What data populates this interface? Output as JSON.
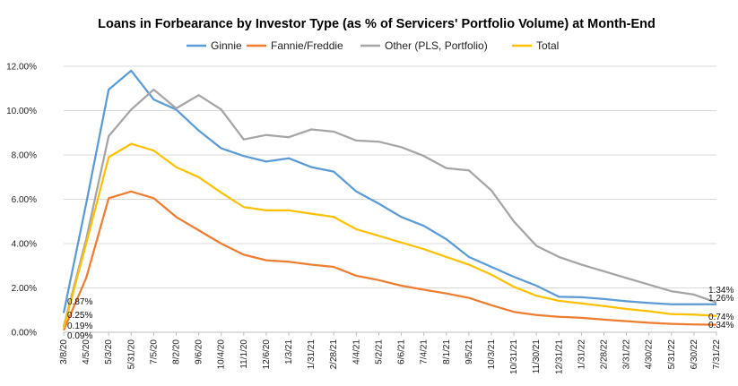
{
  "chart_data": {
    "type": "line",
    "title": "Loans in Forbearance by Investor Type (as % of Servicers' Portfolio Volume) at Month-End",
    "xlabel": "",
    "ylabel": "",
    "ylim": [
      0,
      12
    ],
    "y_ticks": [
      "0.00%",
      "2.00%",
      "4.00%",
      "6.00%",
      "8.00%",
      "10.00%",
      "12.00%"
    ],
    "grid": "horizontal",
    "legend_position": "top",
    "x": [
      "3/8/20",
      "4/5/20",
      "5/3/20",
      "5/31/20",
      "7/5/20",
      "8/2/20",
      "9/6/20",
      "10/4/20",
      "11/1/20",
      "12/6/20",
      "1/3/21",
      "1/31/21",
      "2/28/21",
      "4/4/21",
      "5/2/21",
      "6/6/21",
      "7/4/21",
      "8/1/21",
      "9/5/21",
      "10/3/21",
      "10/31/21",
      "11/30/21",
      "12/31/21",
      "1/31/22",
      "2/28/22",
      "3/31/22",
      "4/30/22",
      "5/31/22",
      "6/30/22",
      "7/31/22"
    ],
    "series": [
      {
        "name": "Ginnie",
        "color": "#5b9bd5",
        "values": [
          0.87,
          5.8,
          10.95,
          11.8,
          10.5,
          10.05,
          9.1,
          8.3,
          7.95,
          7.7,
          7.85,
          7.45,
          7.25,
          6.35,
          5.8,
          5.2,
          4.8,
          4.2,
          3.4,
          2.95,
          2.5,
          2.1,
          1.6,
          1.58,
          1.5,
          1.4,
          1.32,
          1.26,
          1.26,
          1.26
        ]
      },
      {
        "name": "Fannie/Freddie",
        "color": "#ed7d31",
        "values": [
          0.09,
          2.45,
          6.05,
          6.35,
          6.05,
          5.2,
          4.6,
          4.0,
          3.5,
          3.25,
          3.18,
          3.05,
          2.95,
          2.55,
          2.35,
          2.1,
          1.92,
          1.75,
          1.55,
          1.22,
          0.92,
          0.78,
          0.7,
          0.65,
          0.57,
          0.5,
          0.43,
          0.38,
          0.35,
          0.34
        ]
      },
      {
        "name": "Other (PLS, Portfolio)",
        "color": "#a5a5a5",
        "values": [
          0.25,
          4.2,
          8.85,
          10.05,
          10.95,
          10.1,
          10.7,
          10.05,
          8.7,
          8.9,
          8.8,
          9.15,
          9.05,
          8.65,
          8.6,
          8.35,
          7.95,
          7.4,
          7.3,
          6.4,
          5.0,
          3.9,
          3.4,
          3.05,
          2.75,
          2.45,
          2.15,
          1.85,
          1.7,
          1.34
        ]
      },
      {
        "name": "Total",
        "color": "#ffc000",
        "values": [
          0.19,
          4.0,
          7.9,
          8.5,
          8.2,
          7.45,
          7.0,
          6.3,
          5.65,
          5.5,
          5.5,
          5.35,
          5.2,
          4.65,
          4.35,
          4.05,
          3.75,
          3.4,
          3.05,
          2.6,
          2.05,
          1.65,
          1.42,
          1.3,
          1.18,
          1.05,
          0.95,
          0.82,
          0.8,
          0.74
        ]
      }
    ],
    "start_labels": [
      "0.87%",
      "0.25%",
      "0.19%",
      "0.09%"
    ],
    "end_labels": [
      "1.34%",
      "1.26%",
      "0.74%",
      "0.34%"
    ]
  }
}
